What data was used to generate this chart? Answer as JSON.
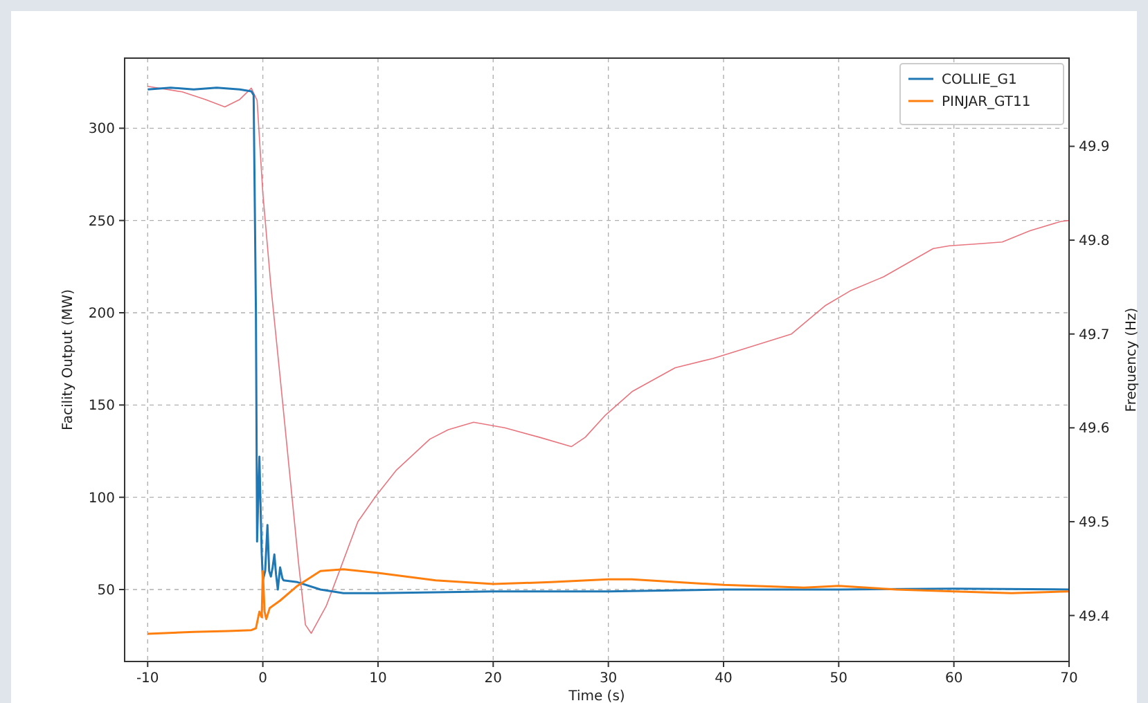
{
  "chart_data": {
    "type": "line",
    "xlabel": "Time (s)",
    "ylabel": "Facility Output (MW)",
    "y2label": "Frequency (Hz)",
    "xlim": [
      -12,
      70
    ],
    "xticks": [
      -10,
      0,
      10,
      20,
      30,
      40,
      50,
      60,
      70
    ],
    "ylim": [
      11,
      338
    ],
    "yticks": [
      50,
      100,
      150,
      200,
      250,
      300
    ],
    "y2lim": [
      49.351,
      49.994
    ],
    "y2ticks": [
      49.4,
      49.5,
      49.6,
      49.7,
      49.8,
      49.9
    ],
    "grid": true,
    "legend": "top right",
    "line_style": "solid",
    "series": [
      {
        "color": "#e8757f",
        "axis": "y2",
        "x": [
          -10,
          -7,
          -5,
          -3.3,
          -2,
          -1,
          -0.5,
          0,
          0.7,
          1.5,
          2.3,
          3.1,
          3.7,
          4.2,
          5.5,
          6.7,
          8.25,
          9.8,
          11.6,
          14.5,
          16.1,
          18.3,
          21,
          24,
          26.8,
          28,
          29.7,
          32.1,
          35.8,
          39.1,
          42,
          45.9,
          48.8,
          51,
          53.9,
          58.2,
          59.6,
          62,
          64.2,
          66.6,
          69.3,
          70
        ],
        "values": [
          49.964,
          49.958,
          49.95,
          49.942,
          49.95,
          49.962,
          49.949,
          49.85,
          49.751,
          49.654,
          49.555,
          49.456,
          49.39,
          49.381,
          49.41,
          49.449,
          49.5,
          49.527,
          49.555,
          49.588,
          49.598,
          49.606,
          49.6,
          49.59,
          49.58,
          49.59,
          49.613,
          49.639,
          49.664,
          49.674,
          49.685,
          49.7,
          49.73,
          49.746,
          49.761,
          49.791,
          49.794,
          49.796,
          49.798,
          49.81,
          49.82,
          49.821
        ]
      },
      {
        "name": "COLLIE_G1",
        "color": "#1f77b4",
        "x": [
          -10,
          -8,
          -6,
          -4,
          -2,
          -1,
          -0.8,
          -0.6,
          -0.5,
          -0.3,
          -0.1,
          0,
          0.2,
          0.4,
          0.55,
          0.7,
          0.85,
          1.0,
          1.15,
          1.3,
          1.5,
          1.7,
          1.8,
          3,
          5,
          7,
          10,
          20,
          30,
          40,
          50,
          60,
          70
        ],
        "values": [
          321,
          322,
          321,
          322,
          321,
          320,
          318,
          200,
          76,
          122,
          70,
          55,
          60,
          85,
          60,
          57,
          62,
          69,
          58,
          50,
          62,
          56,
          55,
          54,
          50,
          48,
          48,
          49,
          49,
          50,
          50,
          50.5,
          50
        ]
      },
      {
        "name": "PINJAR_GT11",
        "color": "#ff7f0e",
        "x": [
          -10,
          -6,
          -3,
          -1,
          -0.6,
          -0.3,
          -0.1,
          0,
          0.15,
          0.3,
          0.6,
          1.5,
          3,
          5,
          7,
          10,
          15,
          20,
          25,
          30,
          32,
          40,
          47,
          50,
          55,
          60,
          65,
          70
        ],
        "values": [
          26,
          27,
          27.5,
          28,
          29,
          38,
          35,
          60,
          38,
          34,
          40,
          44,
          52,
          60,
          61,
          59,
          55,
          53,
          54,
          55.5,
          55.5,
          52.5,
          51,
          52,
          50,
          49,
          48,
          49
        ]
      }
    ]
  }
}
